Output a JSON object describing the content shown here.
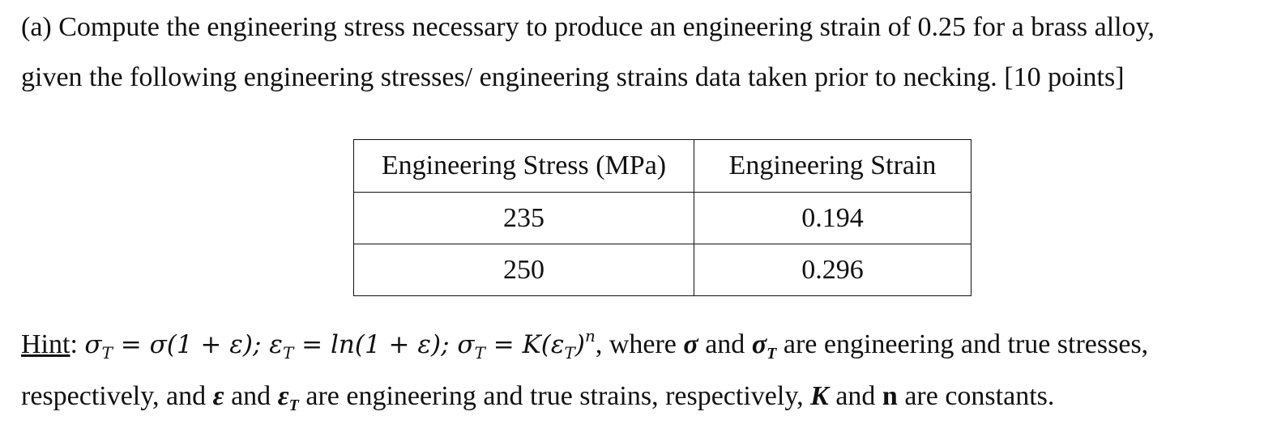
{
  "question": {
    "line1": "(a) Compute the engineering stress necessary to produce an engineering strain of 0.25 for a brass alloy,",
    "line2": "given the following engineering stresses/ engineering strains data taken prior to necking. [10 points]"
  },
  "table": {
    "headers": [
      "Engineering Stress (MPa)",
      "Engineering Strain"
    ],
    "rows": [
      [
        "235",
        "0.194"
      ],
      [
        "250",
        "0.296"
      ]
    ]
  },
  "hint": {
    "label": "Hint",
    "colon": ": ",
    "formula_1": "σ",
    "formula_2": "T",
    "formula_3": " = σ(1 + ε); ε",
    "formula_4": "T",
    "formula_5": " = ",
    "formula_6": "ln",
    "formula_7": "(1 + ε); σ",
    "formula_8": "T",
    "formula_9": " = K(ε",
    "formula_10": "T",
    "formula_11": ")",
    "formula_12": "n",
    "text_1": ", where ",
    "sym_sigma": "σ",
    "text_2": " and ",
    "sym_sigma_t": "σ",
    "sym_sigma_t_sub": "T",
    "text_3": " are engineering and true stresses,",
    "text_4": "respectively, and ",
    "sym_eps": "ε",
    "text_5": " and ",
    "sym_eps_t": "ε",
    "sym_eps_t_sub": "T",
    "text_6": " are engineering and true strains, respectively, ",
    "sym_k": "K",
    "text_7": " and ",
    "sym_n": "n",
    "text_8": " are constants."
  }
}
